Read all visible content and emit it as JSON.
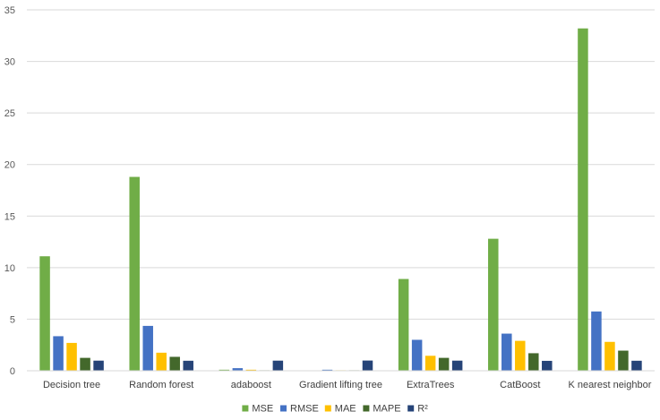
{
  "chart_data": {
    "type": "bar",
    "title": "",
    "xlabel": "",
    "ylabel": "",
    "ylim": [
      0,
      35
    ],
    "yticks": [
      0,
      5,
      10,
      15,
      20,
      25,
      30,
      35
    ],
    "grid": true,
    "legend_position": "bottom",
    "categories": [
      "Decision tree",
      "Random forest",
      "adaboost",
      "Gradient lifting tree",
      "ExtraTrees",
      "CatBoost",
      "K nearest neighbor"
    ],
    "series": [
      {
        "name": "MSE",
        "color": "#70AD47",
        "values": [
          11.1,
          18.8,
          0.1,
          0.0,
          8.9,
          12.8,
          33.2
        ]
      },
      {
        "name": "RMSE",
        "color": "#4472C4",
        "values": [
          3.35,
          4.35,
          0.25,
          0.1,
          3.0,
          3.6,
          5.75
        ]
      },
      {
        "name": "MAE",
        "color": "#FFC000",
        "values": [
          2.7,
          1.75,
          0.1,
          0.05,
          1.45,
          2.9,
          2.8
        ]
      },
      {
        "name": "MAPE",
        "color": "#43682B",
        "values": [
          1.25,
          1.35,
          0.05,
          0.05,
          1.25,
          1.7,
          1.95
        ]
      },
      {
        "name": "R²",
        "color": "#264478",
        "values": [
          0.98,
          0.97,
          0.98,
          0.99,
          0.98,
          0.96,
          0.97
        ]
      }
    ]
  }
}
